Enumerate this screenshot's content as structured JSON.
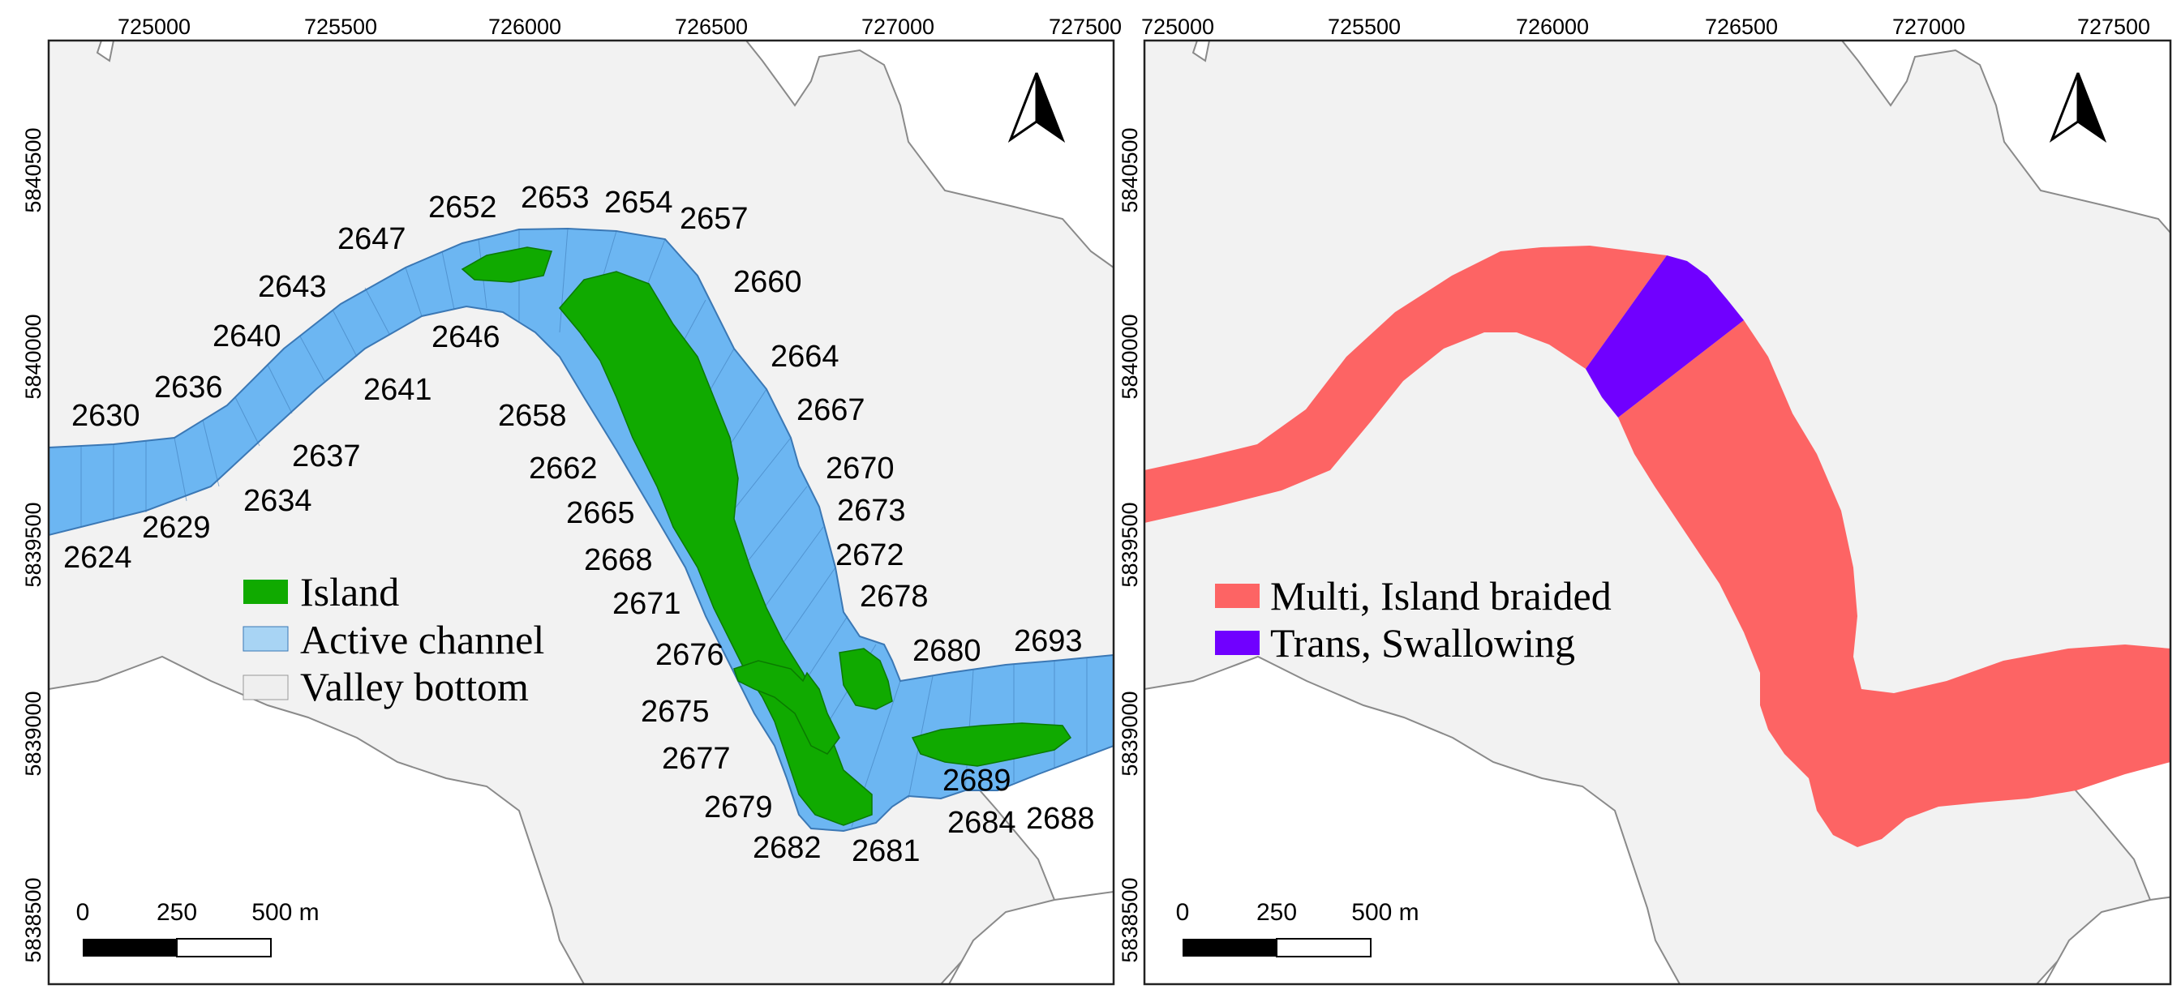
{
  "left_map": {
    "x_ticks": [
      "725000",
      "725500",
      "726000",
      "726500",
      "727000",
      "727500"
    ],
    "y_ticks": [
      "5840500",
      "5840000",
      "5839500",
      "5839000",
      "5838500"
    ],
    "legend": [
      {
        "label": "Island",
        "color": "#10aa00"
      },
      {
        "label": "Active channel",
        "color": "#a8d4f4"
      },
      {
        "label": "Valley bottom",
        "color": "#efefef"
      }
    ],
    "segment_labels": [
      "2624",
      "2629",
      "2630",
      "2634",
      "2636",
      "2637",
      "2640",
      "2641",
      "2643",
      "2646",
      "2647",
      "2652",
      "2653",
      "2654",
      "2657",
      "2658",
      "2660",
      "2662",
      "2664",
      "2665",
      "2667",
      "2668",
      "2670",
      "2671",
      "2672",
      "2673",
      "2675",
      "2676",
      "2677",
      "2678",
      "2679",
      "2680",
      "2681",
      "2682",
      "2684",
      "2688",
      "2689",
      "2693"
    ],
    "scale_bar": {
      "labels": [
        "0",
        "250",
        "500 m"
      ]
    }
  },
  "right_map": {
    "x_ticks": [
      "725000",
      "725500",
      "726000",
      "726500",
      "727000",
      "727500"
    ],
    "y_ticks": [
      "5840500",
      "5840000",
      "5839500",
      "5839000",
      "5838500"
    ],
    "legend": [
      {
        "label": "Multi, Island braided",
        "color": "#fd6464"
      },
      {
        "label": "Trans, Swallowing",
        "color": "#7000ff"
      }
    ],
    "scale_bar": {
      "labels": [
        "0",
        "250",
        "500 m"
      ]
    }
  },
  "colors": {
    "valley": "#f2f2f2",
    "channel": "#6cb6f2",
    "channel_stroke": "#3b78b5",
    "island": "#10aa00",
    "multi": "#fd6464",
    "trans": "#7000ff"
  },
  "icons": [
    "north-arrow-icon"
  ]
}
